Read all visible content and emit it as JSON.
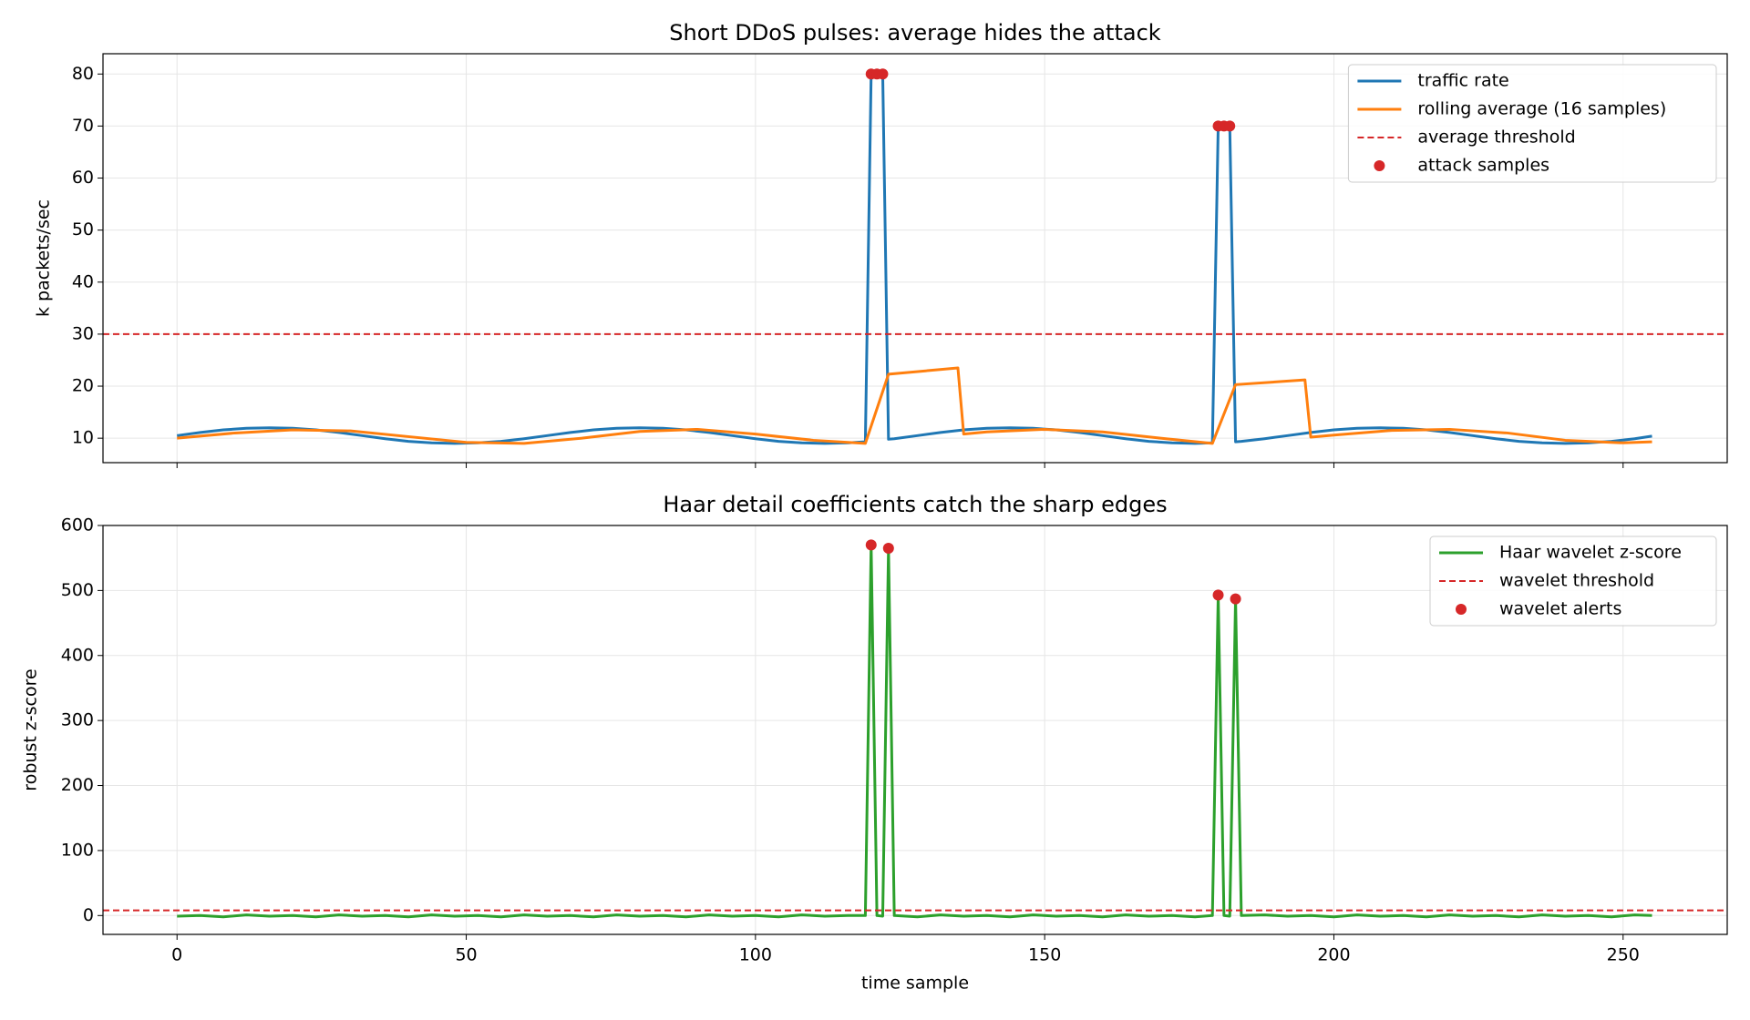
{
  "chart_data": [
    {
      "type": "line",
      "title": "Short DDoS pulses: average hides the attack",
      "ylabel": "k packets/sec",
      "xlim": [
        -12.8,
        268
      ],
      "ylim": [
        5.3,
        83.9
      ],
      "xticks": [
        0,
        50,
        100,
        150,
        200,
        250
      ],
      "xtick_labels": false,
      "yticks": [
        10,
        20,
        30,
        40,
        50,
        60,
        70,
        80
      ],
      "grid": true,
      "legend": "upper right",
      "series": [
        {
          "name": "traffic rate",
          "type": "line",
          "color": "#1f77b4",
          "x": [
            0,
            4,
            8,
            12,
            16,
            20,
            24,
            28,
            32,
            36,
            40,
            44,
            48,
            52,
            56,
            60,
            64,
            68,
            72,
            76,
            80,
            84,
            88,
            92,
            96,
            100,
            104,
            108,
            112,
            116,
            119,
            120,
            121,
            122,
            123,
            124,
            128,
            132,
            136,
            140,
            144,
            148,
            152,
            156,
            160,
            164,
            168,
            172,
            176,
            179,
            180,
            181,
            182,
            183,
            184,
            188,
            192,
            196,
            200,
            204,
            208,
            212,
            216,
            220,
            224,
            228,
            232,
            236,
            240,
            244,
            248,
            252,
            255
          ],
          "values": [
            10.5,
            11.1,
            11.6,
            11.9,
            12,
            11.9,
            11.6,
            11.1,
            10.5,
            9.9,
            9.4,
            9.1,
            9,
            9.1,
            9.4,
            9.9,
            10.5,
            11.1,
            11.6,
            11.9,
            12,
            11.9,
            11.6,
            11.1,
            10.5,
            9.9,
            9.4,
            9.1,
            9,
            9.1,
            9.3,
            80,
            80,
            80,
            9.8,
            9.9,
            10.5,
            11.1,
            11.6,
            11.9,
            12,
            11.9,
            11.6,
            11.1,
            10.5,
            9.9,
            9.4,
            9.1,
            9,
            9.1,
            70,
            70,
            70,
            9.3,
            9.4,
            9.9,
            10.5,
            11.1,
            11.6,
            11.9,
            12,
            11.9,
            11.6,
            11.1,
            10.5,
            9.9,
            9.4,
            9.1,
            9,
            9.1,
            9.4,
            9.9,
            10.4
          ]
        },
        {
          "name": "rolling average (16 samples)",
          "type": "line",
          "color": "#ff7f0e",
          "x": [
            0,
            10,
            20,
            30,
            40,
            50,
            60,
            70,
            80,
            90,
            100,
            110,
            119,
            123,
            135,
            136,
            140,
            150,
            160,
            170,
            179,
            183,
            195,
            196,
            200,
            210,
            220,
            230,
            240,
            250,
            255
          ],
          "values": [
            10,
            11,
            11.6,
            11.4,
            10.3,
            9.2,
            9,
            10,
            11.3,
            11.7,
            10.8,
            9.6,
            9,
            22.3,
            23.5,
            10.8,
            11.2,
            11.7,
            11.2,
            10,
            9,
            20.3,
            21.2,
            10.2,
            10.6,
            11.5,
            11.7,
            11,
            9.6,
            9.1,
            9.3
          ]
        },
        {
          "name": "average threshold",
          "type": "hline",
          "color": "#d62728",
          "y": 30
        },
        {
          "name": "attack samples",
          "type": "scatter",
          "color": "#d62728",
          "x": [
            120,
            121,
            122,
            180,
            181,
            182
          ],
          "values": [
            80,
            80,
            80,
            70,
            70,
            70
          ]
        }
      ]
    },
    {
      "type": "line",
      "title": "Haar detail coefficients catch the sharp edges",
      "ylabel": "robust z-score",
      "xlabel": "time sample",
      "xlim": [
        -12.8,
        268
      ],
      "ylim": [
        -29,
        600
      ],
      "xticks": [
        0,
        50,
        100,
        150,
        200,
        250
      ],
      "xtick_labels": true,
      "yticks": [
        0,
        100,
        200,
        300,
        400,
        500,
        600
      ],
      "grid": true,
      "legend": "upper right",
      "series": [
        {
          "name": "Haar wavelet z-score",
          "type": "line",
          "color": "#2ca02c",
          "x": [
            0,
            4,
            8,
            12,
            16,
            20,
            24,
            28,
            32,
            36,
            40,
            44,
            48,
            52,
            56,
            60,
            64,
            68,
            72,
            76,
            80,
            84,
            88,
            92,
            96,
            100,
            104,
            108,
            112,
            116,
            119,
            120,
            121,
            122,
            123,
            124,
            128,
            132,
            136,
            140,
            144,
            148,
            152,
            156,
            160,
            164,
            168,
            172,
            176,
            179,
            180,
            181,
            182,
            183,
            184,
            188,
            192,
            196,
            200,
            204,
            208,
            212,
            216,
            220,
            224,
            228,
            232,
            236,
            240,
            244,
            248,
            252,
            255
          ],
          "values": [
            -1,
            0,
            -2,
            1,
            -1,
            0,
            -2,
            1,
            -1,
            0,
            -2,
            1,
            -1,
            0,
            -2,
            1,
            -1,
            0,
            -2,
            1,
            -1,
            0,
            -2,
            1,
            -1,
            0,
            -2,
            1,
            -1,
            0,
            0,
            570,
            0,
            -1,
            565,
            0,
            -2,
            1,
            -1,
            0,
            -2,
            1,
            -1,
            0,
            -2,
            1,
            -1,
            0,
            -2,
            0,
            493,
            0,
            -1,
            487,
            0,
            1,
            -1,
            0,
            -2,
            1,
            -1,
            0,
            -2,
            1,
            -1,
            0,
            -2,
            1,
            -1,
            0,
            -2,
            1,
            0
          ]
        },
        {
          "name": "wavelet threshold",
          "type": "hline",
          "color": "#d62728",
          "y": 8
        },
        {
          "name": "wavelet alerts",
          "type": "scatter",
          "color": "#d62728",
          "x": [
            120,
            123,
            180,
            183
          ],
          "values": [
            570,
            565,
            493,
            487
          ]
        }
      ]
    }
  ]
}
